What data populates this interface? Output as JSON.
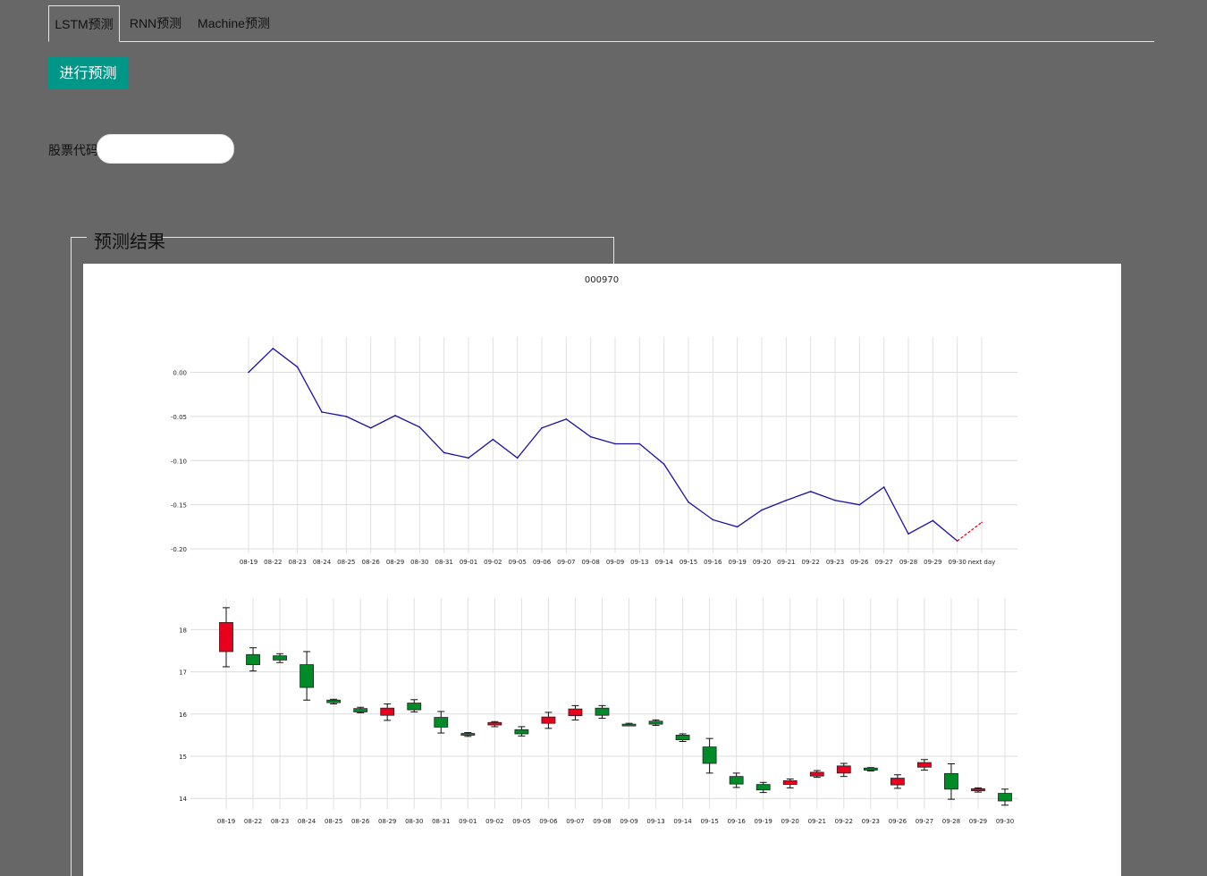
{
  "tabs": [
    {
      "label": "LSTM预测",
      "active": true
    },
    {
      "label": "RNN预测",
      "active": false
    },
    {
      "label": "Machine预测",
      "active": false
    }
  ],
  "predict_button": "进行预测",
  "stock_code": {
    "label": "股票代码:",
    "value": "",
    "placeholder": ""
  },
  "result_legend": "预测结果",
  "chart_data": [
    {
      "type": "line",
      "title": "000970",
      "x": [
        "08-19",
        "08-22",
        "08-23",
        "08-24",
        "08-25",
        "08-26",
        "08-29",
        "08-30",
        "08-31",
        "09-01",
        "09-02",
        "09-05",
        "09-06",
        "09-07",
        "09-08",
        "09-09",
        "09-13",
        "09-14",
        "09-15",
        "09-16",
        "09-19",
        "09-20",
        "09-21",
        "09-22",
        "09-23",
        "09-26",
        "09-27",
        "09-28",
        "09-29",
        "09-30",
        "next day"
      ],
      "series": [
        {
          "values": [
            0.0,
            0.027,
            0.006,
            -0.045,
            -0.05,
            -0.063,
            -0.049,
            -0.062,
            -0.091,
            -0.097,
            -0.076,
            -0.097,
            -0.063,
            -0.053,
            -0.073,
            -0.081,
            -0.081,
            -0.104,
            -0.147,
            -0.167,
            -0.175,
            -0.156,
            -0.145,
            -0.135,
            -0.145,
            -0.15,
            -0.13,
            -0.183,
            -0.168,
            -0.191,
            null
          ],
          "color": "#1a0fa8"
        },
        {
          "values": [
            null,
            null,
            null,
            null,
            null,
            null,
            null,
            null,
            null,
            null,
            null,
            null,
            null,
            null,
            null,
            null,
            null,
            null,
            null,
            null,
            null,
            null,
            null,
            null,
            null,
            null,
            null,
            null,
            null,
            -0.191,
            -0.17
          ],
          "color": "#e8001c",
          "dashed": true
        }
      ],
      "yticks": [
        0.0,
        -0.05,
        -0.1,
        -0.15,
        -0.2
      ],
      "ytick_labels": [
        "0.00",
        "-0.05",
        "-0.10",
        "-0.15",
        "-0.20"
      ],
      "ylim": [
        -0.205,
        0.04
      ]
    },
    {
      "type": "candlestick",
      "x": [
        "08-19",
        "08-22",
        "08-23",
        "08-24",
        "08-25",
        "08-26",
        "08-29",
        "08-30",
        "08-31",
        "09-01",
        "09-02",
        "09-05",
        "09-06",
        "09-07",
        "09-08",
        "09-09",
        "09-13",
        "09-14",
        "09-15",
        "09-16",
        "09-19",
        "09-20",
        "09-21",
        "09-22",
        "09-23",
        "09-26",
        "09-27",
        "09-28",
        "09-29",
        "09-30"
      ],
      "candles": [
        {
          "open": 17.48,
          "close": 18.17,
          "high": 18.52,
          "low": 17.12
        },
        {
          "open": 17.41,
          "close": 17.17,
          "high": 17.57,
          "low": 17.02
        },
        {
          "open": 17.38,
          "close": 17.28,
          "high": 17.43,
          "low": 17.22
        },
        {
          "open": 17.17,
          "close": 16.63,
          "high": 17.48,
          "low": 16.33
        },
        {
          "open": 16.33,
          "close": 16.27,
          "high": 16.35,
          "low": 16.24
        },
        {
          "open": 16.13,
          "close": 16.05,
          "high": 16.16,
          "low": 16.03
        },
        {
          "open": 15.97,
          "close": 16.14,
          "high": 16.24,
          "low": 15.85
        },
        {
          "open": 16.26,
          "close": 16.1,
          "high": 16.34,
          "low": 16.05
        },
        {
          "open": 15.92,
          "close": 15.69,
          "high": 16.06,
          "low": 15.55
        },
        {
          "open": 15.54,
          "close": 15.5,
          "high": 15.56,
          "low": 15.47
        },
        {
          "open": 15.74,
          "close": 15.8,
          "high": 15.82,
          "low": 15.7
        },
        {
          "open": 15.63,
          "close": 15.53,
          "high": 15.7,
          "low": 15.48
        },
        {
          "open": 15.78,
          "close": 15.93,
          "high": 16.04,
          "low": 15.66
        },
        {
          "open": 15.96,
          "close": 16.12,
          "high": 16.2,
          "low": 15.86
        },
        {
          "open": 16.14,
          "close": 15.97,
          "high": 16.2,
          "low": 15.9
        },
        {
          "open": 15.76,
          "close": 15.75,
          "high": 15.78,
          "low": 15.73
        },
        {
          "open": 15.83,
          "close": 15.76,
          "high": 15.86,
          "low": 15.73
        },
        {
          "open": 15.5,
          "close": 15.39,
          "high": 15.53,
          "low": 15.35
        },
        {
          "open": 15.22,
          "close": 14.83,
          "high": 15.42,
          "low": 14.6
        },
        {
          "open": 14.52,
          "close": 14.34,
          "high": 14.6,
          "low": 14.26
        },
        {
          "open": 14.33,
          "close": 14.2,
          "high": 14.38,
          "low": 14.14
        },
        {
          "open": 14.33,
          "close": 14.42,
          "high": 14.46,
          "low": 14.25
        },
        {
          "open": 14.53,
          "close": 14.62,
          "high": 14.66,
          "low": 14.5
        },
        {
          "open": 14.6,
          "close": 14.77,
          "high": 14.83,
          "low": 14.52
        },
        {
          "open": 14.72,
          "close": 14.67,
          "high": 14.73,
          "low": 14.65
        },
        {
          "open": 14.32,
          "close": 14.48,
          "high": 14.56,
          "low": 14.24
        },
        {
          "open": 14.74,
          "close": 14.85,
          "high": 14.92,
          "low": 14.67
        },
        {
          "open": 14.59,
          "close": 14.22,
          "high": 14.82,
          "low": 13.98
        },
        {
          "open": 14.18,
          "close": 14.23,
          "high": 14.25,
          "low": 14.15
        },
        {
          "open": 14.12,
          "close": 13.94,
          "high": 14.22,
          "low": 13.84
        }
      ],
      "up_color": "#e8001c",
      "down_color": "#008a28",
      "yticks": [
        18,
        17,
        16,
        15,
        14
      ],
      "ytick_labels": [
        "18",
        "17",
        "16",
        "15",
        "14"
      ],
      "ylim": [
        13.75,
        18.75
      ]
    }
  ]
}
